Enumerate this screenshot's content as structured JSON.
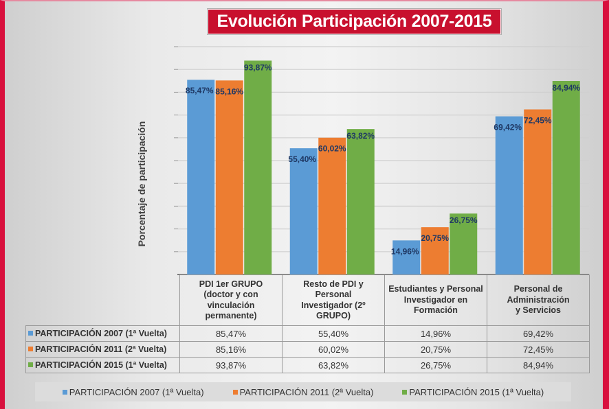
{
  "chart_data": {
    "type": "bar",
    "title": "Evolución Participación 2007-2015",
    "xlabel": "",
    "ylabel": "Porcentaje de participación",
    "ylim": [
      0,
      100
    ],
    "ytick_step": 10,
    "y_tick_labels_shown": false,
    "grid": true,
    "legend_position": "bottom",
    "categories": [
      [
        "PDI 1er GRUPO",
        "(doctor y con",
        "vinculación",
        "permanente)"
      ],
      [
        "Resto de PDI y",
        "Personal",
        "Investigador (2º",
        "GRUPO)"
      ],
      [
        "Estudiantes y Personal",
        "Investigador en",
        "Formación"
      ],
      [
        "Personal de",
        "Administración",
        "y Servicios"
      ]
    ],
    "series": [
      {
        "name": "PARTICIPACIÓN 2007 (1ª Vuelta)",
        "color": "#5b9bd5",
        "values": [
          85.47,
          55.4,
          14.96,
          69.42
        ],
        "labels": [
          "85,47%",
          "55,40%",
          "14,96%",
          "69,42%"
        ]
      },
      {
        "name": "PARTICIPACIÓN 2011 (2ª Vuelta)",
        "color": "#ed7d31",
        "values": [
          85.16,
          60.02,
          20.75,
          72.45
        ],
        "labels": [
          "85,16%",
          "60,02%",
          "20,75%",
          "72,45%"
        ]
      },
      {
        "name": "PARTICIPACIÓN 2015 (1ª Vuelta)",
        "color": "#70ad47",
        "values": [
          93.87,
          63.82,
          26.75,
          84.94
        ],
        "labels": [
          "93,87%",
          "63,82%",
          "26,75%",
          "84,94%"
        ]
      }
    ],
    "data_table": true
  },
  "colors": {
    "frame_accent": "#d8103d",
    "title_bg": "#c8102e",
    "data_label": "#1f3864"
  }
}
